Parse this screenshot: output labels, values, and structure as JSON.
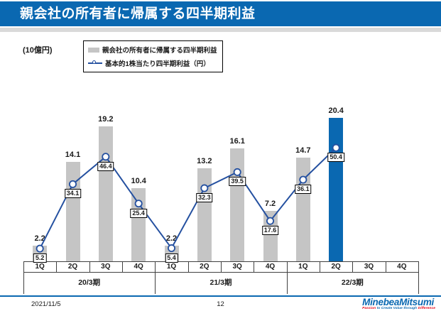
{
  "slide": {
    "title": "親会社の所有者に帰属する四半期利益",
    "footer": {
      "date": "2021/11/5",
      "page": "12",
      "logo_text": "MinebeaMitsumi",
      "tagline_lead": "Passion ",
      "tagline_mid": "to Create Value through ",
      "tagline_tail": "Difference"
    }
  },
  "colors": {
    "accent_blue": "#0A68B1",
    "bar_gray": "#C5C5C5",
    "bar_highlight_blue": "#0A68B1",
    "line_blue": "#2450A0",
    "axis": "#404040",
    "tagline_red": "#E60012"
  },
  "chart_data": {
    "type": "bar",
    "combo": "bar+line",
    "title": "親会社の所有者に帰属する四半期利益",
    "ylabel": "(10億円)",
    "grid": false,
    "legend_position": "top",
    "categories": [
      "1Q",
      "2Q",
      "3Q",
      "4Q",
      "1Q",
      "2Q",
      "3Q",
      "4Q",
      "1Q",
      "2Q",
      "3Q",
      "4Q"
    ],
    "groups": [
      {
        "label": "20/3期",
        "span": 4
      },
      {
        "label": "21/3期",
        "span": 4
      },
      {
        "label": "22/3期",
        "span": 4
      }
    ],
    "series": [
      {
        "name": "親会社の所有者に帰属する四半期利益",
        "type": "bar",
        "unit": "10億円",
        "values": [
          2.2,
          14.1,
          19.2,
          10.4,
          2.2,
          13.2,
          16.1,
          7.2,
          14.7,
          20.4,
          null,
          null
        ],
        "highlight_index": 9
      },
      {
        "name": "基本的1株当たり四半期利益（円）",
        "type": "line",
        "unit": "円",
        "values": [
          5.2,
          34.1,
          46.4,
          25.4,
          5.4,
          32.3,
          39.5,
          17.6,
          36.1,
          50.4,
          null,
          null
        ]
      }
    ]
  }
}
